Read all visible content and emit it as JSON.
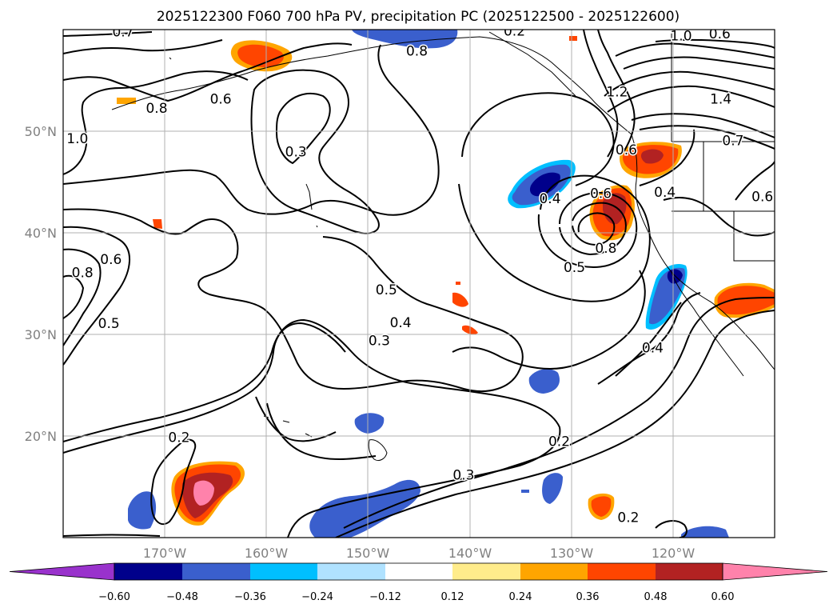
{
  "map": {
    "title": "2025122300 F060 700 hPa PV, precipitation PC (2025122500 - 2025122600)",
    "lon_range": [
      -180,
      -110
    ],
    "lat_range": [
      10,
      60
    ],
    "lon_ticks": [
      {
        "value": -170,
        "label": "170°W"
      },
      {
        "value": -160,
        "label": "160°W"
      },
      {
        "value": -150,
        "label": "150°W"
      },
      {
        "value": -140,
        "label": "140°W"
      },
      {
        "value": -130,
        "label": "130°W"
      },
      {
        "value": -120,
        "label": "120°W"
      }
    ],
    "lat_ticks": [
      {
        "value": 20,
        "label": "20°N"
      },
      {
        "value": 30,
        "label": "30°N"
      },
      {
        "value": 40,
        "label": "40°N"
      },
      {
        "value": 50,
        "label": "50°N"
      }
    ],
    "contour_labels": [
      {
        "text": "0.7",
        "lon": -174.1,
        "lat": 59.8
      },
      {
        "text": "0.8",
        "lon": -170.8,
        "lat": 52.3
      },
      {
        "text": "1.0",
        "lon": -178.6,
        "lat": 49.3
      },
      {
        "text": "0.6",
        "lon": -164.5,
        "lat": 53.2
      },
      {
        "text": "0.3",
        "lon": -157.1,
        "lat": 48.0
      },
      {
        "text": "0.8",
        "lon": -145.2,
        "lat": 57.9
      },
      {
        "text": "0.2",
        "lon": -135.6,
        "lat": 59.9
      },
      {
        "text": "1.0",
        "lon": -119.2,
        "lat": 59.4
      },
      {
        "text": "0.6",
        "lon": -115.4,
        "lat": 59.6
      },
      {
        "text": "1.2",
        "lon": -125.5,
        "lat": 53.9
      },
      {
        "text": "0.6",
        "lon": -124.6,
        "lat": 48.2
      },
      {
        "text": "1.4",
        "lon": -115.3,
        "lat": 53.2
      },
      {
        "text": "0.7",
        "lon": -114.1,
        "lat": 49.1
      },
      {
        "text": "0.4",
        "lon": -132.1,
        "lat": 43.4
      },
      {
        "text": "0.6",
        "lon": -127.1,
        "lat": 43.9
      },
      {
        "text": "0.8",
        "lon": -126.6,
        "lat": 38.5
      },
      {
        "text": "0.5",
        "lon": -129.7,
        "lat": 36.6
      },
      {
        "text": "0.4",
        "lon": -120.8,
        "lat": 44.0
      },
      {
        "text": "0.6",
        "lon": -111.2,
        "lat": 43.6
      },
      {
        "text": "0.8",
        "lon": -178.1,
        "lat": 36.1
      },
      {
        "text": "0.6",
        "lon": -175.3,
        "lat": 37.4
      },
      {
        "text": "0.5",
        "lon": -175.5,
        "lat": 31.1
      },
      {
        "text": "0.5",
        "lon": -148.2,
        "lat": 34.4
      },
      {
        "text": "0.4",
        "lon": -146.8,
        "lat": 31.2
      },
      {
        "text": "0.3",
        "lon": -148.9,
        "lat": 29.4
      },
      {
        "text": "0.4",
        "lon": -122.0,
        "lat": 28.7
      },
      {
        "text": "0.2",
        "lon": -168.6,
        "lat": 19.9
      },
      {
        "text": "0.2",
        "lon": -131.2,
        "lat": 19.5
      },
      {
        "text": "0.3",
        "lon": -140.6,
        "lat": 16.2
      },
      {
        "text": "0.2",
        "lon": -124.4,
        "lat": 12.0
      }
    ]
  },
  "colorbar": {
    "levels": [
      -0.6,
      -0.48,
      -0.36,
      -0.24,
      -0.12,
      0.12,
      0.24,
      0.36,
      0.48,
      0.6
    ],
    "tick_labels": [
      "−0.60",
      "−0.48",
      "−0.36",
      "−0.24",
      "−0.12",
      "0.12",
      "0.24",
      "0.36",
      "0.48",
      "0.60"
    ],
    "colors": [
      "#9932cc",
      "#00008b",
      "#3a5fcd",
      "#00bfff",
      "#b0e2ff",
      "#ffffff",
      "#ffec8b",
      "#ffa500",
      "#ff4500",
      "#b22222",
      "#ff82ab"
    ]
  }
}
